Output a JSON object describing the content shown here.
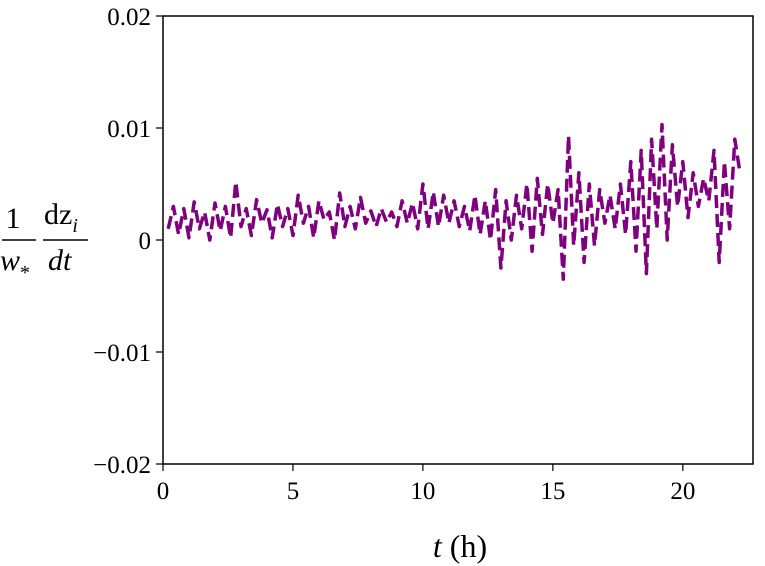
{
  "chart_data": {
    "type": "line",
    "title": "",
    "xlabel": {
      "var": "t",
      "unit": " (h)"
    },
    "ylabel": {
      "num1": "1",
      "den1": "w",
      "den1_sub": "*",
      "num2": "dz",
      "num2_sub": "i",
      "den2": "dt"
    },
    "xlim": [
      0,
      22.7
    ],
    "ylim": [
      -0.02,
      0.02
    ],
    "xticks": [
      0,
      5,
      10,
      15,
      20
    ],
    "xtick_labels": [
      "0",
      "5",
      "10",
      "15",
      "20"
    ],
    "yticks": [
      0.02,
      0.01,
      0,
      -0.01,
      -0.02
    ],
    "ytick_labels": [
      "0.02",
      "0.01",
      "0",
      "−0.01",
      "−0.02"
    ],
    "grid": false,
    "legend": "none",
    "series": [
      {
        "color": "#7f007f",
        "style": "dashed",
        "x": [
          0.2,
          0.4,
          0.6,
          0.8,
          1.0,
          1.2,
          1.4,
          1.6,
          1.8,
          2.0,
          2.2,
          2.4,
          2.6,
          2.8,
          3.0,
          3.2,
          3.4,
          3.6,
          3.8,
          4.0,
          4.2,
          4.4,
          4.6,
          4.8,
          5.0,
          5.2,
          5.4,
          5.6,
          5.8,
          6.0,
          6.2,
          6.4,
          6.6,
          6.8,
          7.0,
          7.2,
          7.4,
          7.6,
          7.8,
          8.0,
          8.2,
          8.4,
          8.6,
          8.8,
          9.0,
          9.2,
          9.4,
          9.6,
          9.8,
          10.0,
          10.2,
          10.4,
          10.6,
          10.8,
          11.0,
          11.2,
          11.4,
          11.6,
          11.8,
          12.0,
          12.2,
          12.4,
          12.6,
          12.8,
          13.0,
          13.2,
          13.4,
          13.6,
          13.8,
          14.0,
          14.2,
          14.4,
          14.6,
          14.8,
          15.0,
          15.2,
          15.4,
          15.6,
          15.8,
          16.0,
          16.2,
          16.4,
          16.6,
          16.8,
          17.0,
          17.2,
          17.4,
          17.6,
          17.8,
          18.0,
          18.2,
          18.4,
          18.6,
          18.8,
          19.0,
          19.2,
          19.4,
          19.6,
          19.8,
          20.0,
          20.2,
          20.4,
          20.6,
          20.8,
          21.0,
          21.2,
          21.4,
          21.6,
          21.8,
          22.0,
          22.2
        ],
        "y": [
          0.001,
          0.003,
          0.0005,
          0.0028,
          0.0002,
          0.0034,
          0.001,
          0.0025,
          0.0,
          0.0033,
          0.0008,
          0.003,
          0.0002,
          0.0052,
          0.0012,
          0.0028,
          0.0004,
          0.0036,
          0.0015,
          0.0027,
          0.0002,
          0.0032,
          0.0012,
          0.0028,
          0.0004,
          0.004,
          0.0015,
          0.003,
          0.0002,
          0.0035,
          0.0018,
          0.0025,
          0.0,
          0.0042,
          0.0012,
          0.003,
          0.001,
          0.0038,
          0.0015,
          0.0026,
          0.0012,
          0.0028,
          0.0016,
          0.0025,
          0.0012,
          0.0035,
          0.0015,
          0.0033,
          0.001,
          0.005,
          0.001,
          0.0043,
          0.0012,
          0.004,
          0.0015,
          0.0035,
          0.0012,
          0.003,
          0.0008,
          0.004,
          0.0005,
          0.0035,
          0.0,
          0.0045,
          -0.0025,
          0.0035,
          0.0,
          0.004,
          0.001,
          0.005,
          -0.001,
          0.0055,
          0.0005,
          0.005,
          0.0015,
          0.0045,
          -0.0035,
          0.0093,
          -0.0005,
          0.006,
          -0.002,
          0.005,
          -0.0005,
          0.0045,
          0.0015,
          0.004,
          0.001,
          0.005,
          0.0005,
          0.007,
          -0.001,
          0.008,
          -0.003,
          0.009,
          0.001,
          0.0103,
          0.0,
          0.0085,
          0.003,
          0.007,
          0.002,
          0.006,
          0.003,
          0.0055,
          0.0035,
          0.008,
          -0.002,
          0.007,
          0.001,
          0.009,
          0.006
        ]
      }
    ]
  }
}
